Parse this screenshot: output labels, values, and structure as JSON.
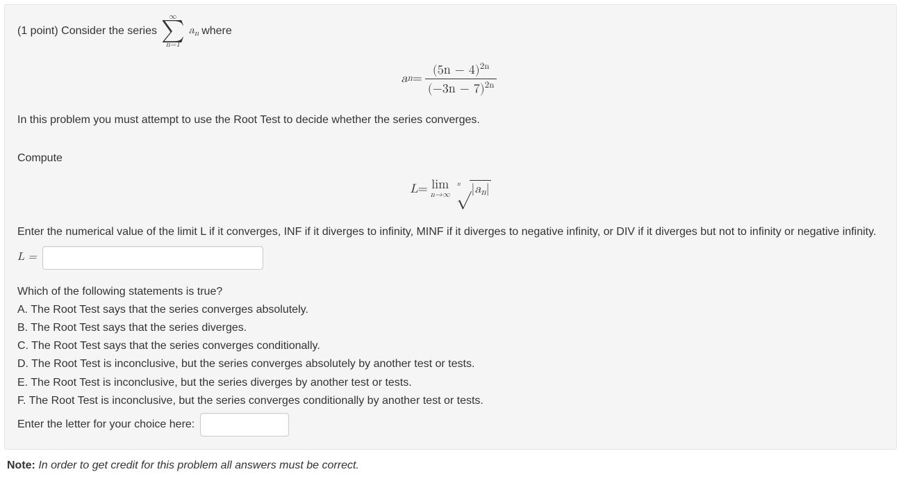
{
  "problem": {
    "points_prefix": "(1 point) Consider the series ",
    "sigma_upper": "∞",
    "sigma_lower": "n=1",
    "an": "a",
    "an_sub": "n",
    "after_sigma": " where",
    "eq1_lhs_a": "a",
    "eq1_lhs_sub": "n",
    "eq1_eq": " = ",
    "eq1_num": "(5n − 4)",
    "eq1_num_sup": "2n",
    "eq1_den": "(−3n − 7)",
    "eq1_den_sup": "2n",
    "instr1": "In this problem you must attempt to use the Root Test to decide whether the series converges.",
    "compute": "Compute",
    "eq2_L": "L",
    "eq2_eq": " = ",
    "lim_top": "lim",
    "lim_bot": "n→∞",
    "root_index": "n",
    "abs_l": "|",
    "abs_a": "a",
    "abs_sub": "n",
    "abs_r": "|",
    "instr2": "Enter the numerical value of the limit L if it converges, INF if it diverges to infinity, MINF if it diverges to negative infinity, or DIV if it diverges but not to infinity or negative infinity.",
    "L_label": "L = ",
    "choices_q": "Which of the following statements is true?",
    "choice_A": "A. The Root Test says that the series converges absolutely.",
    "choice_B": "B. The Root Test says that the series diverges.",
    "choice_C": "C. The Root Test says that the series converges conditionally.",
    "choice_D": "D. The Root Test is inconclusive, but the series converges absolutely by another test or tests.",
    "choice_E": "E. The Root Test is inconclusive, but the series diverges by another test or tests.",
    "choice_F": "F. The Root Test is inconclusive, but the series converges conditionally by another test or tests.",
    "choice_input_label": "Enter the letter for your choice here: "
  },
  "note_bold": "Note:",
  "note_rest": " In order to get credit for this problem all answers must be correct.",
  "colors": {
    "box_bg": "#f5f5f5",
    "box_border": "#e5e5e5",
    "text": "#333333",
    "input_border": "#cccccc"
  }
}
